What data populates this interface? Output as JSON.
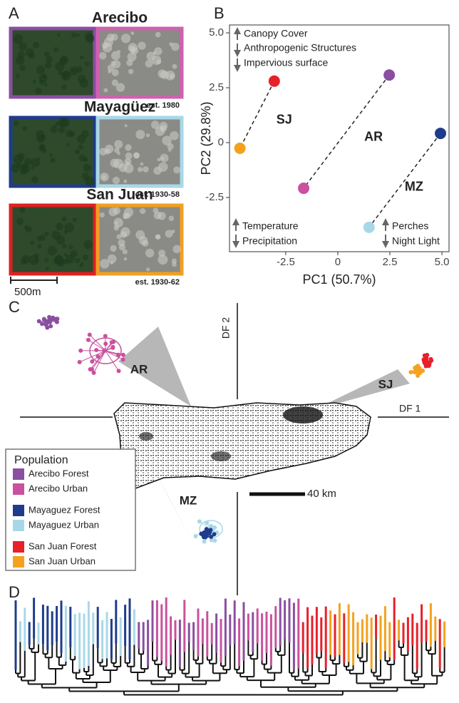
{
  "panel_labels": [
    "A",
    "B",
    "C",
    "D"
  ],
  "panel_a": {
    "sites": [
      {
        "name": "Arecibo",
        "established": "est. 1980",
        "color": "#c9519e",
        "frames": [
          "#8a4fa0",
          "#d060b0"
        ]
      },
      {
        "name": "Mayagüez",
        "established": "est. 1930-58",
        "color": "#4a76a8",
        "frames": [
          "#1f3c8c",
          "#a8d8e8"
        ]
      },
      {
        "name": "San Juan",
        "established": "est. 1930-62",
        "color": "#ee8a1e",
        "frames": [
          "#e02020",
          "#f0a020"
        ]
      }
    ],
    "scale_bar": "500m"
  },
  "chart_data": {
    "type": "scatter",
    "x_label": "PC1 (50.7%)",
    "y_label": "PC2 (29.8%)",
    "xlim": [
      -5.2,
      5.34
    ],
    "ylim": [
      -4.97,
      5.36
    ],
    "xticks": [
      -2.5,
      0,
      2.5,
      {
        "value": 5,
        "label": "5.0"
      }
    ],
    "yticks": [
      -2.5,
      0,
      2.5,
      {
        "value": 5,
        "label": "5.0"
      }
    ],
    "series": [
      {
        "name": "SJ",
        "colors": [
          "#e8202a",
          "#f4a21e"
        ],
        "x": [
          -3.05,
          -4.7
        ],
        "y": [
          2.8,
          -0.26
        ]
      },
      {
        "name": "AR",
        "colors": [
          "#8a4fa0",
          "#c9519e"
        ],
        "x": [
          2.47,
          -1.64
        ],
        "y": [
          3.08,
          -2.08
        ]
      },
      {
        "name": "MZ",
        "colors": [
          "#1f3c8c",
          "#a8d8e8"
        ],
        "x": [
          4.93,
          1.5
        ],
        "y": [
          0.42,
          -3.86
        ]
      }
    ],
    "annotations": [
      "Canopy Cover",
      "Anthropogenic Structures",
      "Impervious surface",
      "Temperature",
      "Precipitation",
      "Perches",
      "Night Light"
    ]
  },
  "panel_c": {
    "x_axis_label": "DF 1",
    "y_axis_label": "DF 2",
    "cluster_labels": [
      "AR",
      "SJ",
      "MZ"
    ],
    "scale_bar": "40 km",
    "legend": {
      "title": "Population",
      "entries": [
        {
          "name": "Arecibo Forest",
          "color": "#8a4fa0"
        },
        {
          "name": "Arecibo Urban",
          "color": "#c9519e"
        },
        {
          "name": "Mayaguez Forest",
          "color": "#1f3c8c"
        },
        {
          "name": "Mayaguez Urban",
          "color": "#a8d8e8"
        },
        {
          "name": "San Juan Forest",
          "color": "#e8202a"
        },
        {
          "name": "San Juan Urban",
          "color": "#f4a21e"
        }
      ]
    }
  }
}
